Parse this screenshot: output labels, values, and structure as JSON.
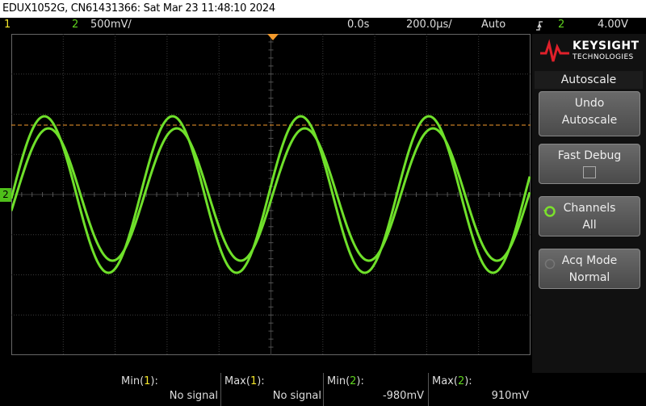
{
  "title_bar": "EDUX1052G, CN61431366: Sat Mar 23 11:48:10 2024",
  "status_bar": {
    "channel1": "1",
    "channel2": "2",
    "channel2_scale": "500mV/",
    "time_offset": "0.0s",
    "timebase": "200.0µs/",
    "trigger_mode": "Auto",
    "trigger_channel": "2",
    "trigger_level": "4.00V"
  },
  "ground_marker": "2",
  "logo": {
    "brand": "KEYSIGHT",
    "sub": "TECHNOLOGIES"
  },
  "softkeys": {
    "title": "Autoscale",
    "buttons": [
      [
        "Undo",
        "Autoscale"
      ],
      [
        "Fast Debug"
      ],
      [
        "Channels",
        "All"
      ],
      [
        "Acq Mode",
        "Normal"
      ]
    ]
  },
  "measurements": [
    {
      "label": [
        "Min(",
        "1",
        "):"
      ],
      "value": "No signal"
    },
    {
      "label": [
        "Max(",
        "1",
        "):"
      ],
      "value": "No signal"
    },
    {
      "label": [
        "Min(",
        "2",
        "):"
      ],
      "value": "-980mV"
    },
    {
      "label": [
        "Max(",
        "2",
        "):"
      ],
      "value": "910mV"
    }
  ]
}
